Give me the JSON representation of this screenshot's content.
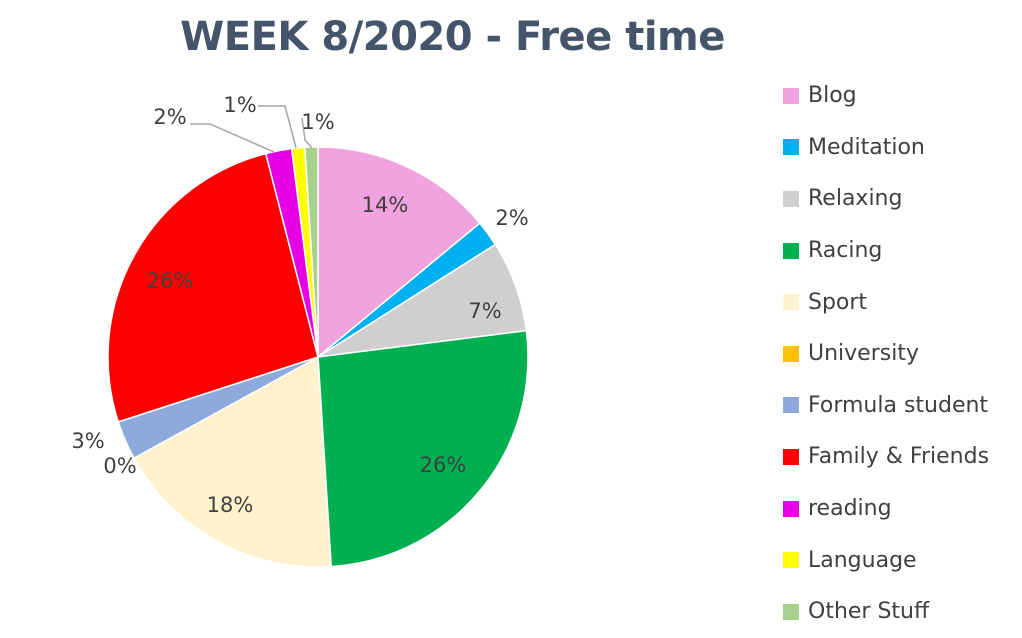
{
  "chart_data": {
    "type": "pie",
    "title": "WEEK 8/2020 - Free time",
    "legend_position": "right",
    "categories": [
      "Blog",
      "Meditation",
      "Relaxing",
      "Racing",
      "Sport",
      "University",
      "Formula student",
      "Family & Friends",
      "reading",
      "Language",
      "Other Stuff"
    ],
    "values": [
      14,
      2,
      7,
      26,
      18,
      0,
      3,
      26,
      2,
      1,
      1
    ],
    "labels": [
      "14%",
      "2%",
      "7%",
      "26%",
      "18%",
      "0%",
      "3%",
      "26%",
      "2%",
      "1%",
      "1%"
    ],
    "colors": [
      "#F1A3E0",
      "#00B0F0",
      "#D0CECE",
      "#00B050",
      "#FFF2CC",
      "#FFC000",
      "#8EA9DB",
      "#FF0000",
      "#E600E6",
      "#FFFF00",
      "#A9D18E"
    ]
  }
}
